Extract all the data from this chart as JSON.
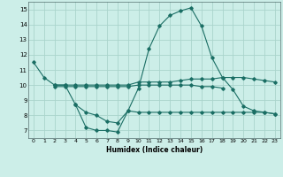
{
  "background_color": "#cceee8",
  "grid_color": "#aad4cc",
  "line_color": "#1a6e64",
  "xlabel": "Humidex (Indice chaleur)",
  "xlim": [
    -0.5,
    23.5
  ],
  "ylim": [
    6.5,
    15.5
  ],
  "xticks": [
    0,
    1,
    2,
    3,
    4,
    5,
    6,
    7,
    8,
    9,
    10,
    11,
    12,
    13,
    14,
    15,
    16,
    17,
    18,
    19,
    20,
    21,
    22,
    23
  ],
  "yticks": [
    7,
    8,
    9,
    10,
    11,
    12,
    13,
    14,
    15
  ],
  "series": [
    {
      "x": [
        0,
        1,
        2,
        3,
        4,
        5,
        6,
        7,
        8,
        9,
        10,
        11,
        12,
        13,
        14,
        15,
        16,
        17,
        18,
        19,
        20,
        21,
        22,
        23
      ],
      "y": [
        11.5,
        10.5,
        10.0,
        10.0,
        8.7,
        7.2,
        7.0,
        7.0,
        6.9,
        8.3,
        9.8,
        12.4,
        13.9,
        14.6,
        14.9,
        15.1,
        13.9,
        11.8,
        10.5,
        9.7,
        8.6,
        8.3,
        8.2,
        8.1
      ]
    },
    {
      "x": [
        2,
        3,
        4,
        5,
        6,
        7,
        8,
        9,
        10,
        11,
        12,
        13,
        14,
        15,
        16,
        17,
        18,
        19,
        20,
        21,
        22,
        23
      ],
      "y": [
        10.0,
        10.0,
        10.0,
        10.0,
        10.0,
        10.0,
        10.0,
        10.0,
        10.2,
        10.2,
        10.2,
        10.2,
        10.3,
        10.4,
        10.4,
        10.4,
        10.5,
        10.5,
        10.5,
        10.4,
        10.3,
        10.2
      ]
    },
    {
      "x": [
        2,
        3,
        4,
        5,
        6,
        7,
        8,
        9,
        10,
        11,
        12,
        13,
        14,
        15,
        16,
        17,
        18
      ],
      "y": [
        9.9,
        9.9,
        9.9,
        9.9,
        9.9,
        9.9,
        9.9,
        9.9,
        10.0,
        10.0,
        10.0,
        10.0,
        10.0,
        10.0,
        9.9,
        9.9,
        9.8
      ]
    },
    {
      "x": [
        4,
        5,
        6,
        7,
        8,
        9,
        10,
        11,
        12,
        13,
        14,
        15,
        16,
        17,
        18,
        19,
        20,
        21,
        22,
        23
      ],
      "y": [
        8.7,
        8.2,
        8.0,
        7.6,
        7.5,
        8.3,
        8.2,
        8.2,
        8.2,
        8.2,
        8.2,
        8.2,
        8.2,
        8.2,
        8.2,
        8.2,
        8.2,
        8.2,
        8.2,
        8.1
      ]
    }
  ]
}
